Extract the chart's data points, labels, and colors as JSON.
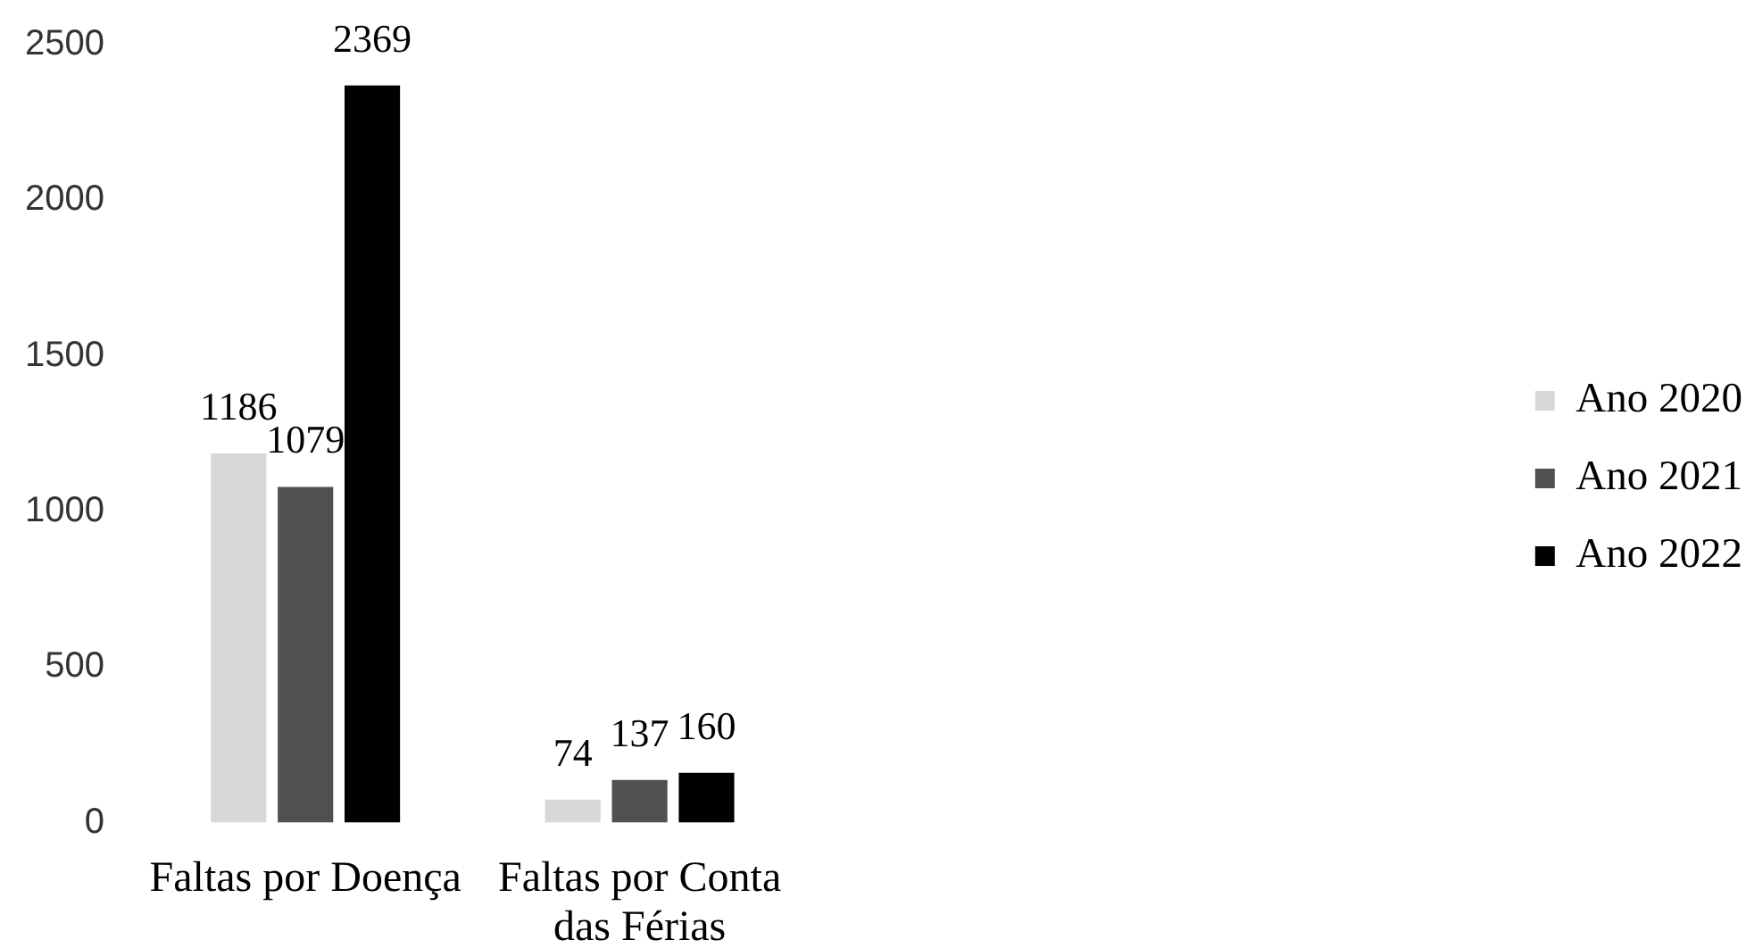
{
  "chart_data": {
    "type": "bar",
    "categories": [
      "Faltas por Doença",
      "Faltas por Conta das Férias"
    ],
    "series": [
      {
        "name": "Ano 2020",
        "color": "#d8d8d8",
        "values": [
          1186,
          74
        ]
      },
      {
        "name": "Ano 2021",
        "color": "#505050",
        "values": [
          1079,
          137
        ]
      },
      {
        "name": "Ano 2022",
        "color": "#000000",
        "values": [
          2369,
          160
        ]
      }
    ],
    "ylim": [
      0,
      2500
    ],
    "yticks": [
      0,
      500,
      1000,
      1500,
      2000,
      2500
    ],
    "grid": false,
    "legend": "right",
    "data_labels": true
  }
}
